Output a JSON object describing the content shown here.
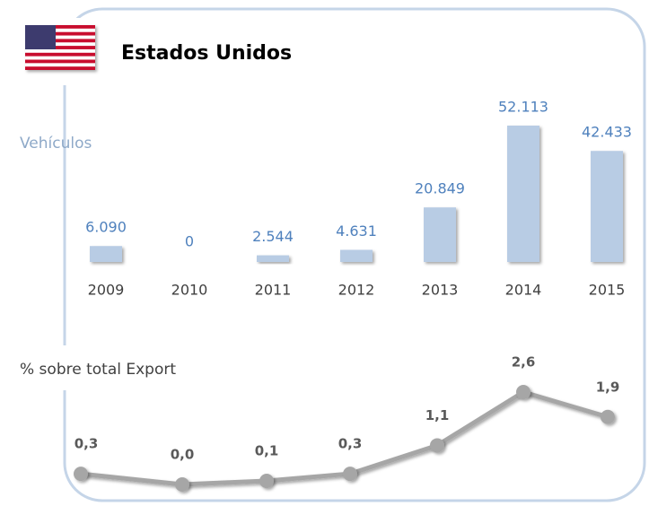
{
  "title": "Estados Unidos",
  "chart_data": [
    {
      "type": "bar",
      "y_label": "Vehículos",
      "color": "#b8cce4",
      "categories": [
        "2009",
        "2010",
        "2011",
        "2012",
        "2013",
        "2014",
        "2015"
      ],
      "values": [
        6090,
        0,
        2544,
        4631,
        20849,
        52113,
        42433
      ],
      "value_labels": [
        "6.090",
        "0",
        "2.544",
        "4.631",
        "20.849",
        "52.113",
        "42.433"
      ]
    },
    {
      "type": "line",
      "y_label": "% sobre total Export",
      "color": "#a6a6a6",
      "values": [
        0.3,
        0.0,
        0.1,
        0.3,
        1.1,
        2.6,
        1.9
      ],
      "value_labels": [
        "0,3",
        "0,0",
        "0,1",
        "0,3",
        "1,1",
        "2,6",
        "1,9"
      ]
    }
  ]
}
